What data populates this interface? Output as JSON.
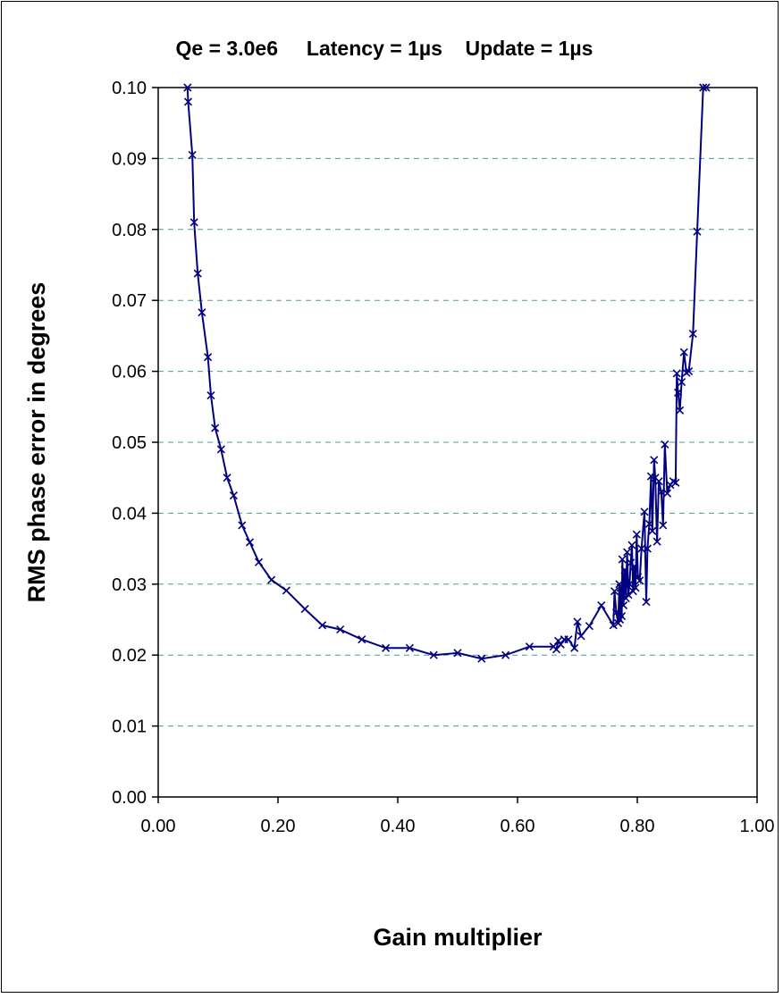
{
  "chart_data": {
    "type": "line",
    "title": "Qe = 3.0e6     Latency = 1µs    Update = 1µs",
    "xlabel": "Gain multiplier",
    "ylabel": "RMS phase error in degrees",
    "xlim": [
      0,
      1
    ],
    "ylim": [
      0,
      0.1
    ],
    "x_ticks": [
      "0.00",
      "0.20",
      "0.40",
      "0.60",
      "0.80",
      "1.00"
    ],
    "y_ticks": [
      "0.00",
      "0.01",
      "0.02",
      "0.03",
      "0.04",
      "0.05",
      "0.06",
      "0.07",
      "0.08",
      "0.09",
      "0.10"
    ],
    "grid": "horizontal dashed",
    "legend": "none",
    "series": [
      {
        "color": "#000080",
        "marker": "x",
        "x": [
          0.049,
          0.05,
          0.057,
          0.06,
          0.066,
          0.073,
          0.083,
          0.088,
          0.095,
          0.105,
          0.115,
          0.126,
          0.14,
          0.153,
          0.168,
          0.189,
          0.214,
          0.245,
          0.274,
          0.304,
          0.34,
          0.38,
          0.42,
          0.46,
          0.5,
          0.54,
          0.58,
          0.62,
          0.66,
          0.665,
          0.668,
          0.672,
          0.678,
          0.685,
          0.695,
          0.7,
          0.706,
          0.72,
          0.74,
          0.76,
          0.762,
          0.765,
          0.768,
          0.77,
          0.771,
          0.772,
          0.774,
          0.775,
          0.777,
          0.779,
          0.781,
          0.783,
          0.785,
          0.787,
          0.789,
          0.791,
          0.793,
          0.795,
          0.797,
          0.799,
          0.801,
          0.804,
          0.807,
          0.812,
          0.815,
          0.817,
          0.82,
          0.823,
          0.825,
          0.828,
          0.83,
          0.833,
          0.836,
          0.84,
          0.843,
          0.846,
          0.85,
          0.855,
          0.86,
          0.864,
          0.866,
          0.868,
          0.871,
          0.874,
          0.878,
          0.882,
          0.886,
          0.893,
          0.9,
          0.91,
          0.915
        ],
        "y": [
          0.1,
          0.098,
          0.0905,
          0.081,
          0.0738,
          0.0683,
          0.062,
          0.0566,
          0.052,
          0.049,
          0.045,
          0.0425,
          0.0383,
          0.0359,
          0.0331,
          0.0306,
          0.0291,
          0.0265,
          0.0242,
          0.0236,
          0.0222,
          0.021,
          0.021,
          0.02,
          0.0203,
          0.0195,
          0.02,
          0.0212,
          0.0212,
          0.0208,
          0.022,
          0.0215,
          0.0222,
          0.0222,
          0.021,
          0.0247,
          0.0227,
          0.0241,
          0.027,
          0.0242,
          0.029,
          0.026,
          0.0245,
          0.03,
          0.025,
          0.0295,
          0.0255,
          0.0335,
          0.027,
          0.032,
          0.028,
          0.0345,
          0.0285,
          0.03,
          0.033,
          0.0355,
          0.029,
          0.0325,
          0.0295,
          0.037,
          0.031,
          0.0305,
          0.035,
          0.0402,
          0.0275,
          0.035,
          0.0385,
          0.0452,
          0.0375,
          0.0475,
          0.045,
          0.036,
          0.0445,
          0.043,
          0.0383,
          0.0497,
          0.0428,
          0.044,
          0.0445,
          0.0443,
          0.0597,
          0.057,
          0.0545,
          0.0585,
          0.0627,
          0.0598,
          0.06,
          0.0653,
          0.0797,
          0.1,
          0.1
        ]
      }
    ]
  }
}
